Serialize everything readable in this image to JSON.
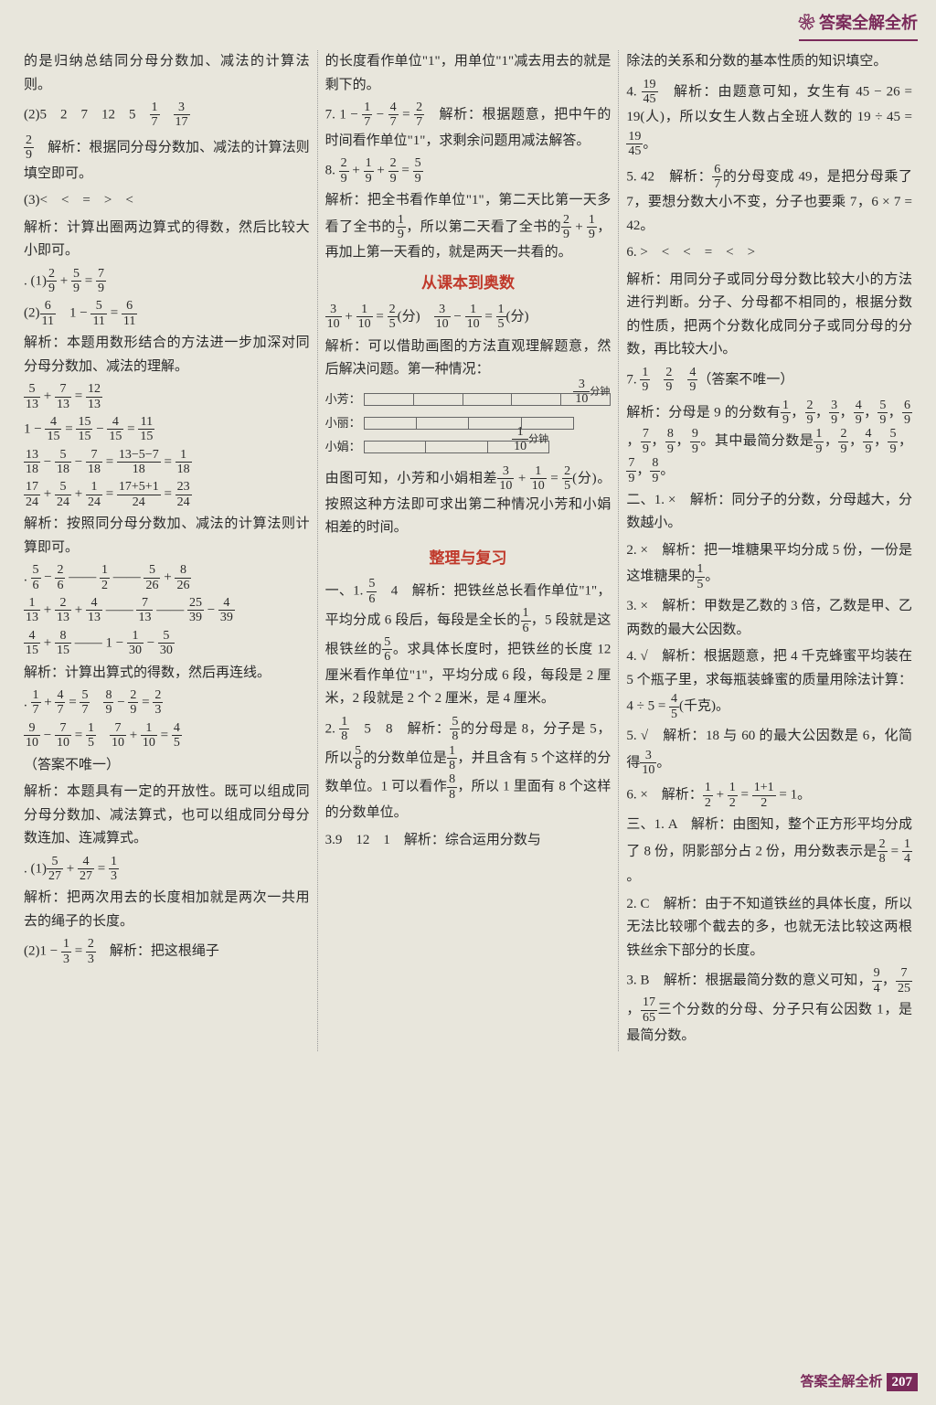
{
  "header": "答案全解全析",
  "footer_label": "答案全解全析",
  "page_number": "207",
  "colors": {
    "brand": "#7a2a5a",
    "red": "#c0392b",
    "bg": "#e8e6dc",
    "text": "#2a2a2a",
    "gray": "#555"
  },
  "font": {
    "body_size": 15,
    "header_size": 18,
    "heading_size": 17
  },
  "col1": {
    "t0": "的是归纳总结同分母分数加、减法的计算法则。",
    "t1a": "(2)5　2　7　12　5　",
    "t1b": "　",
    "t2": "　解析：根据同分母分数加、减法的计算法则填空即可。",
    "t3": "(3)<　<　=　>　<",
    "t4": "解析：计算出圈两边算式的得数，然后比较大小即可。",
    "t5": ". (1)",
    "t5e": " + ",
    " t5e2": " = ",
    "t6": "(2)",
    "t6m": "　1 − ",
    "t6e": " = ",
    "t7": "解析：本题用数形结合的方法进一步加深对同分母分数加、减法的理解。",
    "t8": "解析：按照同分母分数加、减法的计算法则计算即可。",
    "t9": "解析：计算出算式的得数，然后再连线。",
    "t10": "（答案不唯一）",
    "t11": "解析：本题具有一定的开放性。既可以组成同分母分数加、减法算式，也可以组成同分母分数连加、连减算式。",
    "t12": ". (1)",
    "t12e": " + ",
    " t12e2": " = ",
    "t13": "解析：把两次用去的长度相加就是两次一共用去的绳子的长度。",
    "t14": "(2)1 − ",
    "t14e": " = ",
    "t14t": "　解析：把这根绳子"
  },
  "col2": {
    "t0": "的长度看作单位\"1\"，用单位\"1\"减去用去的就是剩下的。",
    "t1": "7. 1 − ",
    "t1m": " − ",
    "t1e": " = ",
    "t1t": "　解析：根据题意，把中午的时间看作单位\"1\"，求剩余问题用减法解答。",
    "t2": "8. ",
    "t2p": " + ",
    "t2e": " = ",
    "t3": "解析：把全书看作单位\"1\"，第二天比第一天多看了全书的",
    "t3m": "，所以第二天看了全书的",
    "t3p": " + ",
    "t3e": "，再加上第一天看的，就是两天一共看的。",
    "h1": "从课本到奥数",
    "t4a": " + ",
    "t4e": " = ",
    "t4u": "(分)　",
    "t4b": " − ",
    "t4e2": " = ",
    "t4u2": "(分)",
    "t5": "解析：可以借助画图的方法直观理解题意，然后解决问题。第一种情况：",
    "diag_label_1": "小芳：",
    "diag_label_2": "小丽：",
    "diag_label_3": "小娟：",
    "diag_note_1": "分钟",
    "diag_note_2": "分钟",
    "t6": "由图可知，小芳和小娟相差",
    "t6p": " + ",
    "t6e": " = ",
    "t6f": "(分)。按照这种方法即可求出第二种情况小芳和小娟相差的时间。",
    "h2": "整理与复习",
    "t7": "一、1. ",
    "t7b": "　4　解析：把铁丝总长看作单位\"1\"，平均分成 6 段后，每段是全长的",
    "t7c": "，5 段就是这根铁丝的",
    "t7d": "。求具体长度时，把铁丝的长度 12 厘米看作单位\"1\"，平均分成 6 段，每段是 2 厘米，2 段就是 2 个 2 厘米，是 4 厘米。",
    "t8": "2. ",
    "t8b": "　5　8　解析：",
    "t8c": "的分母是 8，分子是 5，所以",
    "t8d": "的分数单位是",
    "t8e": "，并且含有 5 个这样的分数单位。1 可以看作",
    "t8f": "，所以 1 里面有 8 个这样的分数单位。",
    "t9": "3.9　12　1　解析：综合运用分数与"
  },
  "col3": {
    "t0": "除法的关系和分数的基本性质的知识填空。",
    "t1": "4. ",
    "t1b": "　解析：由题意可知，女生有 45 − 26 = 19(人)，所以女生人数占全班人数的 19 ÷ 45 = ",
    "t1c": "。",
    "t2": "5. 42　解析：",
    "t2b": "的分母变成 49，是把分母乘了 7，要想分数大小不变，分子也要乘 7，6 × 7 = 42。",
    "t3": "6. >　<　<　=　<　>",
    "t4": "解析：用同分子或同分母分数比较大小的方法进行判断。分子、分母都不相同的，根据分数的性质，把两个分数化成同分子或同分母的分数，再比较大小。",
    "t5": "7. ",
    "t5b": "　",
    "t5c": "　",
    "t5d": "（答案不唯一）",
    "t6": "解析：分母是 9 的分数有",
    "t6l": "，",
    "t6e": "。其中最简分数是",
    "t6f": "，",
    "t6g": "，",
    "t6h": "，",
    "t6i": "，",
    "t6j": "，",
    "t6k": "。",
    "t7": "二、1. ×　解析：同分子的分数，分母越大，分数越小。",
    "t8": "2. ×　解析：把一堆糖果平均分成 5 份，一份是这堆糖果的",
    "t8b": "。",
    "t9": "3. ×　解析：甲数是乙数的 3 倍，乙数是甲、乙两数的最大公因数。",
    "t10": "4. √　解析：根据题意，把 4 千克蜂蜜平均装在 5 个瓶子里，求每瓶装蜂蜜的质量用除法计算：4 ÷ 5 = ",
    "t10b": "(千克)。",
    "t11": "5. √　解析：18 与 60 的最大公因数是 6，化简得",
    "t11b": "。",
    "t12": "6. ×　解析：",
    "t12p": " + ",
    "t12e": " = ",
    "t12r": " = 1。",
    "t13": "三、1. A　解析：由图知，整个正方形平均分成了 8 份，阴影部分占 2 份，用分数表示是",
    "t13e": " = ",
    "t13f": "。",
    "t14": "2. C　解析：由于不知道铁丝的具体长度，所以无法比较哪个截去的多，也就无法比较这两根铁丝余下部分的长度。",
    "t15": "3. B　解析：根据最简分数的意义可知，",
    "t15b": "，",
    "t15c": "，",
    "t15d": "三个分数的分母、分子只有公因数 1，是最简分数。"
  }
}
